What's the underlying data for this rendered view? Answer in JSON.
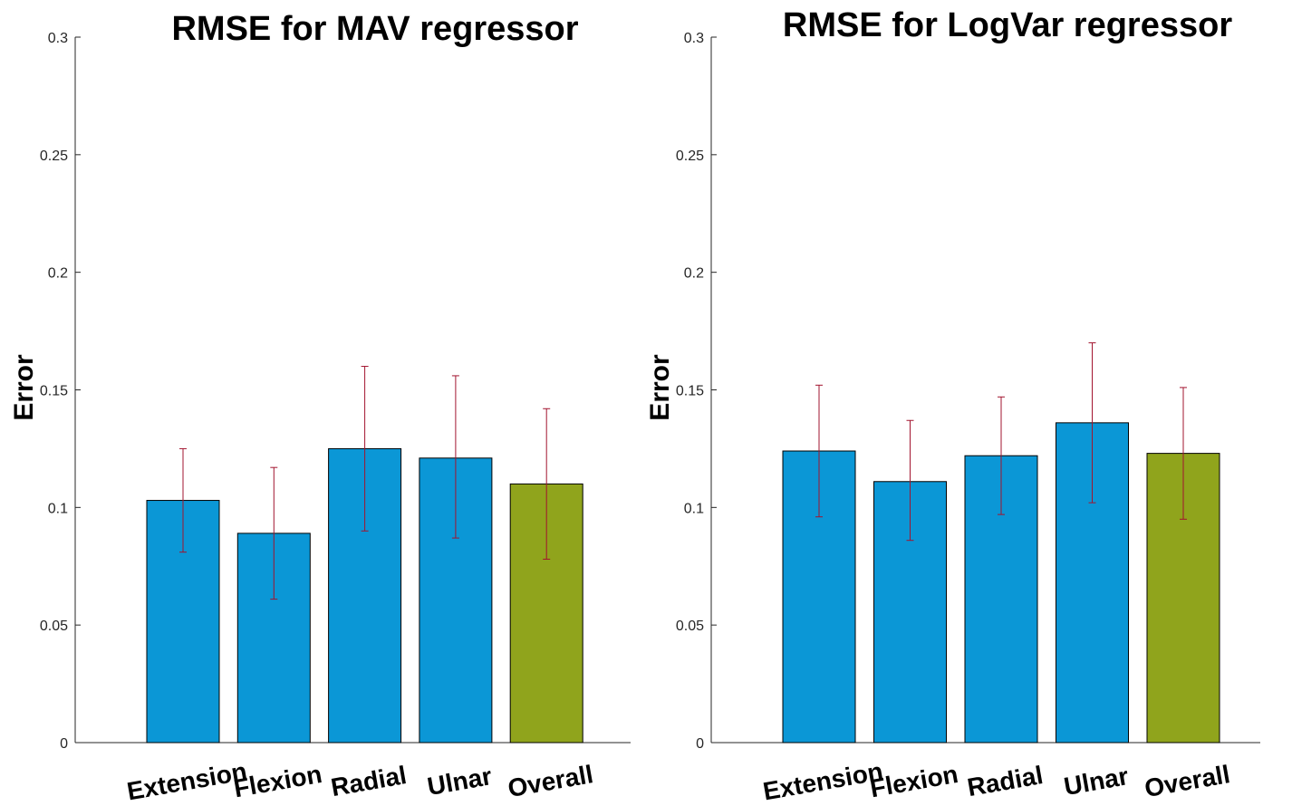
{
  "chart_data": [
    {
      "type": "bar",
      "title": "RMSE for MAV regressor",
      "xlabel": "",
      "ylabel": "Error",
      "ylim": [
        0,
        0.3
      ],
      "yticks": [
        "0",
        "0.05",
        "0.1",
        "0.15",
        "0.2",
        "0.25",
        "0.3"
      ],
      "categories": [
        "Extension",
        "Flexion",
        "Radial",
        "Ulnar",
        "Overall"
      ],
      "values": [
        0.103,
        0.089,
        0.125,
        0.121,
        0.11
      ],
      "error_low": [
        0.081,
        0.061,
        0.09,
        0.087,
        0.078
      ],
      "error_high": [
        0.125,
        0.117,
        0.16,
        0.156,
        0.142
      ],
      "bar_colors": [
        "#0b97d6",
        "#0b97d6",
        "#0b97d6",
        "#0b97d6",
        "#90a41c"
      ],
      "error_color": "#a2142f",
      "grid": false
    },
    {
      "type": "bar",
      "title": "RMSE for LogVar regressor",
      "xlabel": "",
      "ylabel": "Error",
      "ylim": [
        0,
        0.3
      ],
      "yticks": [
        "0",
        "0.05",
        "0.1",
        "0.15",
        "0.2",
        "0.25",
        "0.3"
      ],
      "categories": [
        "Extension",
        "Flexion",
        "Radial",
        "Ulnar",
        "Overall"
      ],
      "values": [
        0.124,
        0.111,
        0.122,
        0.136,
        0.123
      ],
      "error_low": [
        0.096,
        0.086,
        0.097,
        0.102,
        0.095
      ],
      "error_high": [
        0.152,
        0.137,
        0.147,
        0.17,
        0.151
      ],
      "bar_colors": [
        "#0b97d6",
        "#0b97d6",
        "#0b97d6",
        "#0b97d6",
        "#90a41c"
      ],
      "error_color": "#a2142f",
      "grid": false
    }
  ]
}
